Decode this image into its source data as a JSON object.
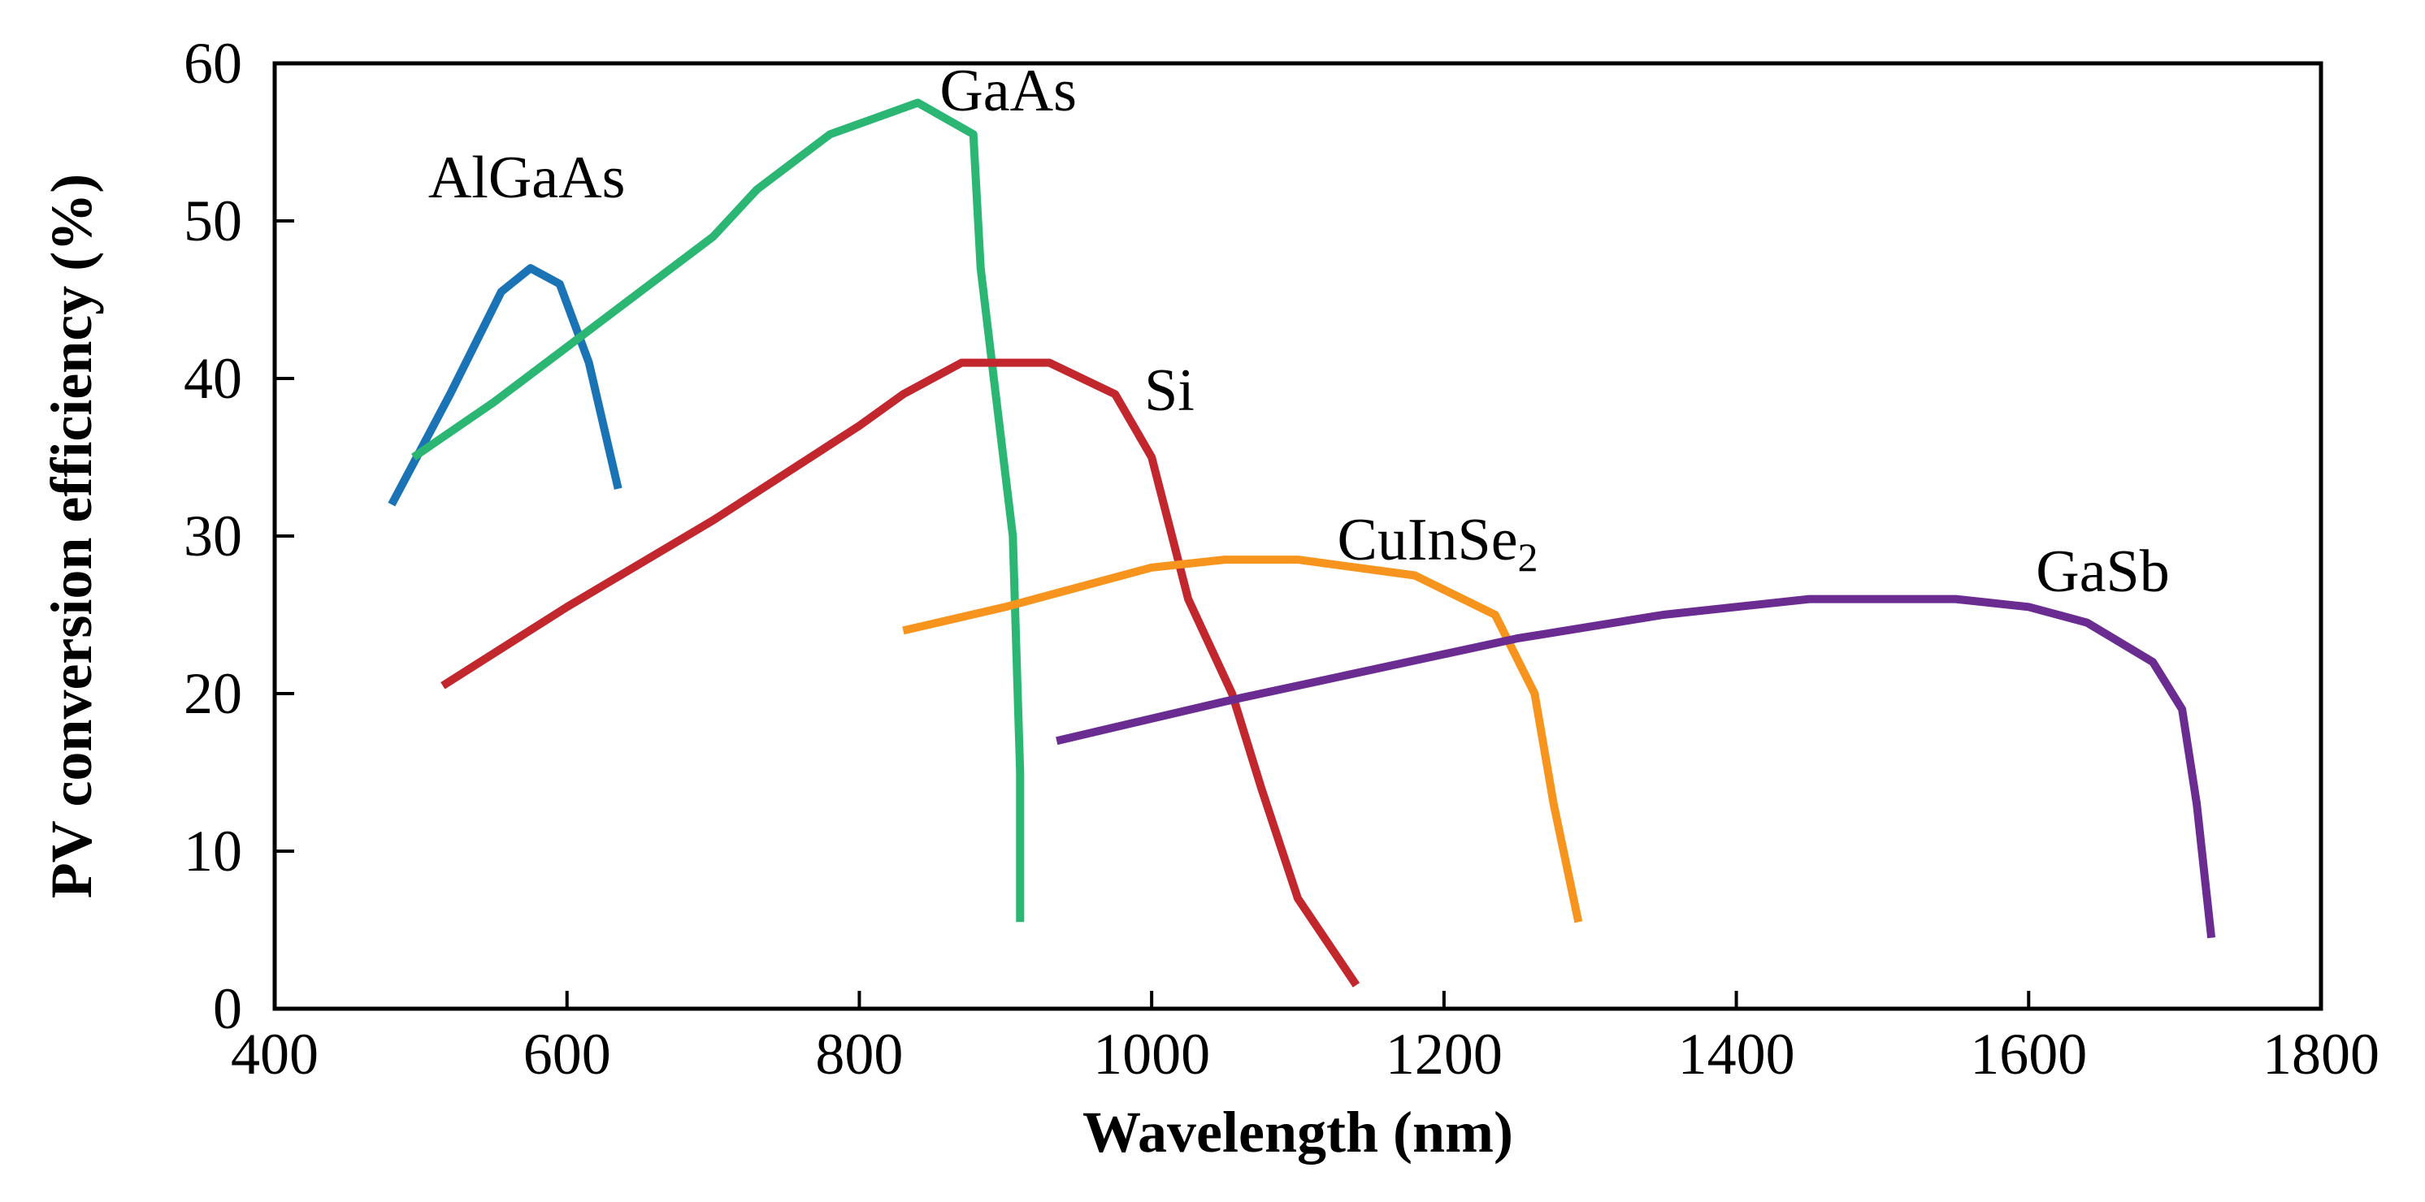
{
  "chart_data": {
    "type": "line",
    "title": "",
    "xlabel": "Wavelength (nm)",
    "ylabel": "PV conversion efficiency (%)",
    "xlim": [
      400,
      1800
    ],
    "ylim": [
      0,
      60
    ],
    "xticks": [
      400,
      600,
      800,
      1000,
      1200,
      1400,
      1600,
      1800
    ],
    "yticks": [
      0,
      10,
      20,
      30,
      40,
      50,
      60
    ],
    "grid": false,
    "legend": "inline labels",
    "series": [
      {
        "name": "AlGaAs",
        "label_main": "AlGaAs",
        "label_sub": "",
        "color": "#1a73b5",
        "x": [
          480,
          520,
          555,
          575,
          595,
          615,
          635
        ],
        "y": [
          32,
          39,
          45.5,
          47,
          46,
          41,
          33
        ]
      },
      {
        "name": "GaAs",
        "label_main": "GaAs",
        "label_sub": "",
        "color": "#2bb673",
        "x": [
          495,
          550,
          600,
          650,
          700,
          730,
          780,
          810,
          840,
          878,
          883,
          892,
          905,
          910,
          910
        ],
        "y": [
          35,
          38.5,
          42,
          45.5,
          49,
          52,
          55.5,
          56.5,
          57.5,
          55.5,
          47,
          40,
          30,
          15,
          5.5
        ]
      },
      {
        "name": "Si",
        "label_main": "Si",
        "label_sub": "",
        "color": "#c1272d",
        "x": [
          515,
          600,
          700,
          800,
          830,
          870,
          900,
          930,
          975,
          1000,
          1025,
          1055,
          1075,
          1100,
          1140
        ],
        "y": [
          20.5,
          25.5,
          31,
          37,
          39,
          41,
          41,
          41,
          39,
          35,
          26,
          20,
          14,
          7,
          1.5
        ]
      },
      {
        "name": "CuInSe2",
        "label_main": "CuInSe",
        "label_sub": "2",
        "color": "#f7941d",
        "x": [
          830,
          900,
          1000,
          1050,
          1100,
          1180,
          1235,
          1262,
          1275,
          1292
        ],
        "y": [
          24,
          25.5,
          28,
          28.5,
          28.5,
          27.5,
          25,
          20,
          13,
          5.5
        ]
      },
      {
        "name": "GaSb",
        "label_main": "GaSb",
        "label_sub": "",
        "color": "#6a2c91",
        "x": [
          935,
          1050,
          1150,
          1250,
          1350,
          1450,
          1550,
          1600,
          1640,
          1685,
          1705,
          1715,
          1725
        ],
        "y": [
          17,
          19.5,
          21.5,
          23.5,
          25,
          26,
          26,
          25.5,
          24.5,
          22,
          19,
          13,
          4.5
        ]
      }
    ]
  }
}
